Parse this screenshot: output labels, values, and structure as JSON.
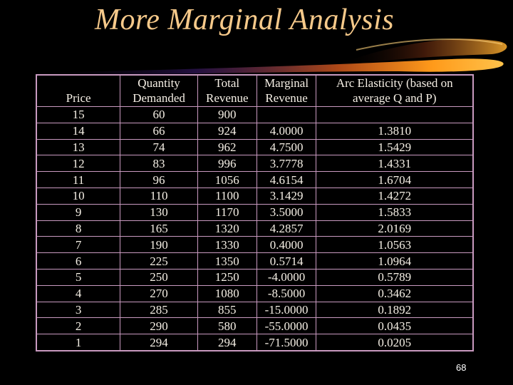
{
  "slide": {
    "title": "More Marginal Analysis",
    "page_number": "68",
    "accent_color": "#f6c98a"
  },
  "table": {
    "headers": [
      "Price",
      "Quantity Demanded",
      "Total Revenue",
      "Marginal Revenue",
      "Arc Elasticity (based on average Q and P)"
    ],
    "rows": [
      [
        "15",
        "60",
        "900",
        "",
        ""
      ],
      [
        "14",
        "66",
        "924",
        "4.0000",
        "1.3810"
      ],
      [
        "13",
        "74",
        "962",
        "4.7500",
        "1.5429"
      ],
      [
        "12",
        "83",
        "996",
        "3.7778",
        "1.4331"
      ],
      [
        "11",
        "96",
        "1056",
        "4.6154",
        "1.6704"
      ],
      [
        "10",
        "110",
        "1100",
        "3.1429",
        "1.4272"
      ],
      [
        "9",
        "130",
        "1170",
        "3.5000",
        "1.5833"
      ],
      [
        "8",
        "165",
        "1320",
        "4.2857",
        "2.0169"
      ],
      [
        "7",
        "190",
        "1330",
        "0.4000",
        "1.0563"
      ],
      [
        "6",
        "225",
        "1350",
        "0.5714",
        "1.0964"
      ],
      [
        "5",
        "250",
        "1250",
        "-4.0000",
        "0.5789"
      ],
      [
        "4",
        "270",
        "1080",
        "-8.5000",
        "0.3462"
      ],
      [
        "3",
        "285",
        "855",
        "-15.0000",
        "0.1892"
      ],
      [
        "2",
        "290",
        "580",
        "-55.0000",
        "0.0435"
      ],
      [
        "1",
        "294",
        "294",
        "-71.5000",
        "0.0205"
      ]
    ]
  }
}
